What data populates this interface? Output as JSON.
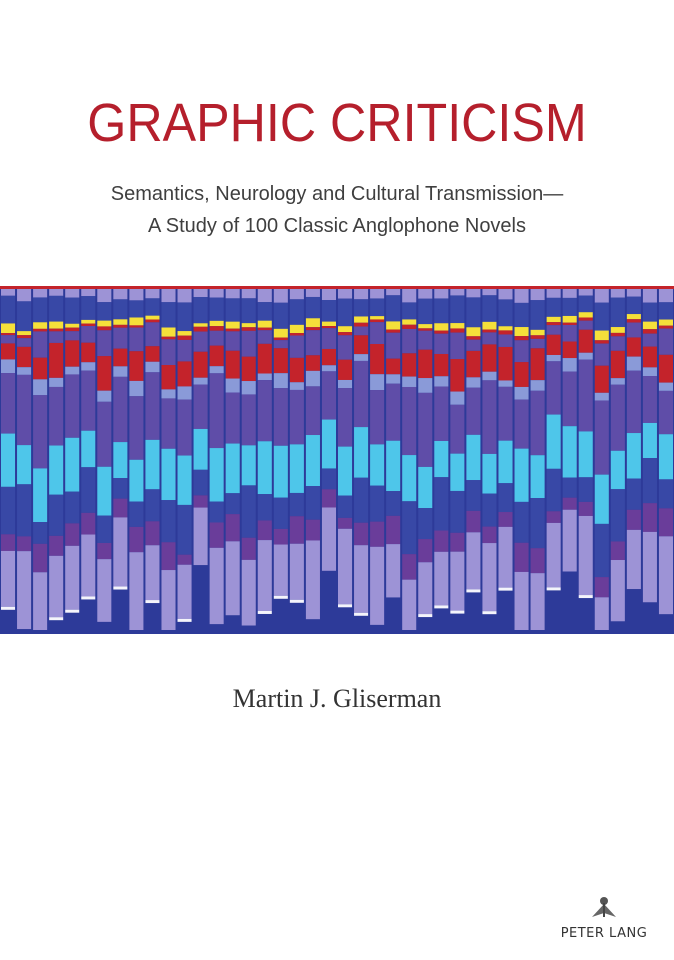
{
  "cover": {
    "title": "GRAPHIC CRITICISM",
    "subtitle_line1": "Semantics, Neurology and Cultural Transmission—",
    "subtitle_line2": "A Study of 100 Classic Anglophone Novels",
    "author": "Martin J. Gliserman",
    "publisher": "PETER LANG"
  },
  "colors": {
    "title": "#b51f2c",
    "blue": "#3848a6",
    "purple": "#5f4da8",
    "dark_purple": "#6a3d9a",
    "lavender": "#9d93d6",
    "light_lavender": "#8a9ad8",
    "red": "#c4232b",
    "yellow": "#f5e03a",
    "cyan": "#4ec6ea",
    "white": "#f4f4fb",
    "frame": "#2d3a99"
  }
}
